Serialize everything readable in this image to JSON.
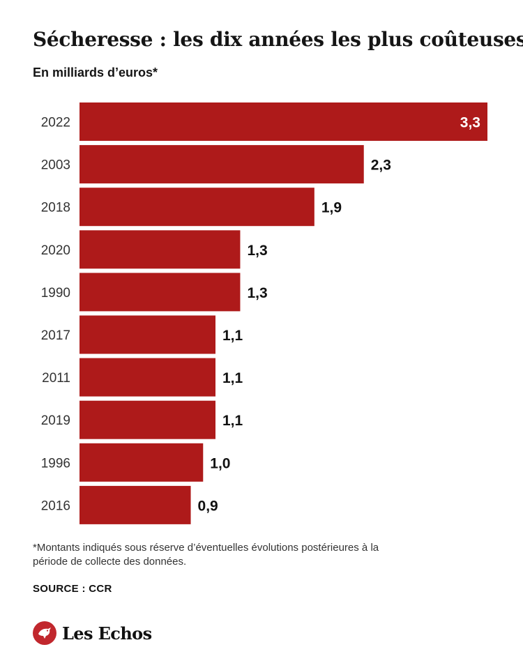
{
  "header": {
    "title": "Sécheresse : les dix années les plus coûteuses",
    "subtitle": "En milliards d’euros*"
  },
  "chart_data": {
    "type": "bar",
    "orientation": "horizontal",
    "categories": [
      "2022",
      "2003",
      "2018",
      "2020",
      "1990",
      "2017",
      "2011",
      "2019",
      "1996",
      "2016"
    ],
    "values": [
      3.3,
      2.3,
      1.9,
      1.3,
      1.3,
      1.1,
      1.1,
      1.1,
      1.0,
      0.9
    ],
    "value_labels": [
      "3,3",
      "2,3",
      "1,9",
      "1,3",
      "1,3",
      "1,1",
      "1,1",
      "1,1",
      "1,0",
      "0,9"
    ],
    "title": "Sécheresse : les dix années les plus coûteuses",
    "ylabel": "En milliards d’euros*",
    "xlim": [
      0,
      3.3
    ],
    "grid": false,
    "bar_color": "#ae1a1a"
  },
  "footer": {
    "footnote": "*Montants indiqués sous réserve d’éventuelles évolutions postérieures à la période de collecte des données.",
    "source": "SOURCE : CCR",
    "brand": "Les Echos",
    "brand_color": "#c1272d"
  }
}
